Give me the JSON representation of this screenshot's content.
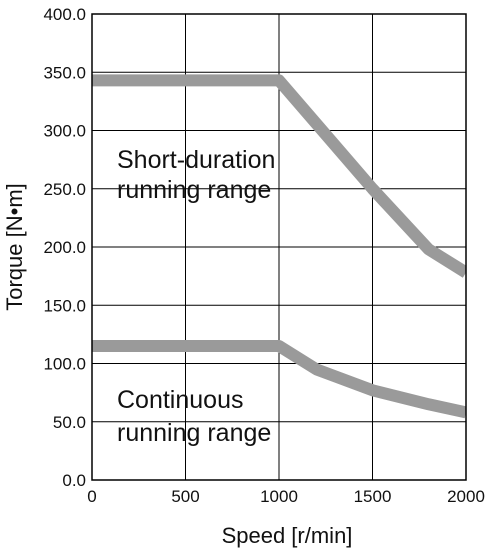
{
  "chart_data": {
    "type": "line",
    "title": "",
    "xlabel": "Speed [r/min]",
    "ylabel": "Torque [N•m]",
    "xlim": [
      0,
      2000
    ],
    "ylim": [
      0,
      400
    ],
    "x_ticks": [
      "0",
      "500",
      "1000",
      "1500",
      "2000"
    ],
    "y_ticks": [
      "0.0",
      "50.0",
      "100.0",
      "150.0",
      "200.0",
      "250.0",
      "300.0",
      "350.0",
      "400.0"
    ],
    "grid": true,
    "line_color": "#9a9a9a",
    "series": [
      {
        "x": [
          0,
          1000,
          1500,
          1800,
          2000
        ],
        "y": [
          343,
          343,
          250,
          198,
          178
        ]
      },
      {
        "x": [
          0,
          1000,
          1200,
          1500,
          1800,
          2000
        ],
        "y": [
          115,
          115,
          95,
          77,
          65,
          58
        ]
      }
    ],
    "annotations": [
      {
        "lines": [
          "Short-duration",
          "running range"
        ]
      },
      {
        "lines": [
          "Continuous",
          "running range"
        ]
      }
    ]
  }
}
